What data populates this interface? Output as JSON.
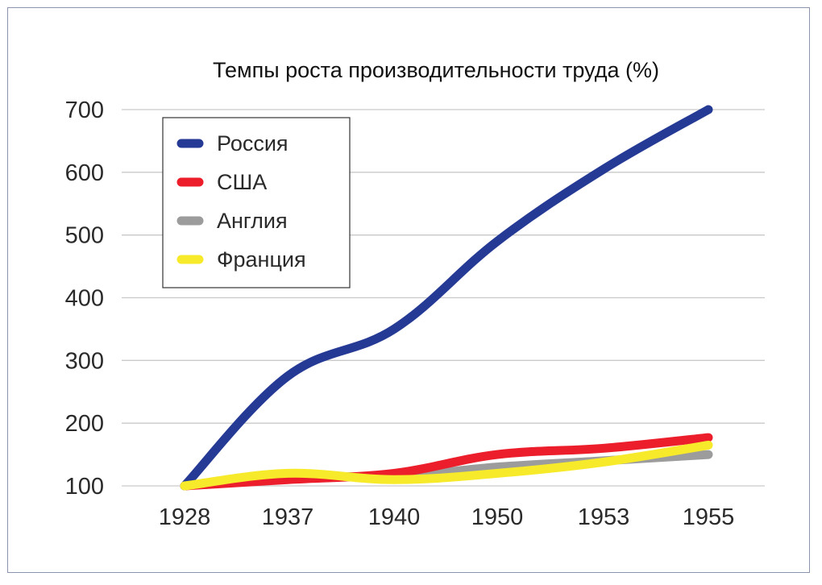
{
  "chart_data": {
    "type": "line",
    "title": "Темпы роста производительности труда (%)",
    "xlabel": "",
    "ylabel": "",
    "categories": [
      "1928",
      "1937",
      "1940",
      "1950",
      "1953",
      "1955"
    ],
    "ylim": [
      100,
      700
    ],
    "yticks": [
      "100",
      "200",
      "300",
      "400",
      "500",
      "600",
      "700"
    ],
    "grid": true,
    "legend_position": "top-left",
    "series": [
      {
        "name": "Россия",
        "color": "#253a94",
        "values": [
          100,
          275,
          350,
          490,
          605,
          700
        ]
      },
      {
        "name": "США",
        "color": "#ec1e2b",
        "values": [
          100,
          110,
          120,
          150,
          160,
          177
        ]
      },
      {
        "name": "Англия",
        "color": "#9c9c9c",
        "values": [
          100,
          115,
          115,
          130,
          140,
          150
        ]
      },
      {
        "name": "Франция",
        "color": "#f6ea2a",
        "values": [
          100,
          120,
          110,
          120,
          138,
          165
        ]
      }
    ]
  }
}
